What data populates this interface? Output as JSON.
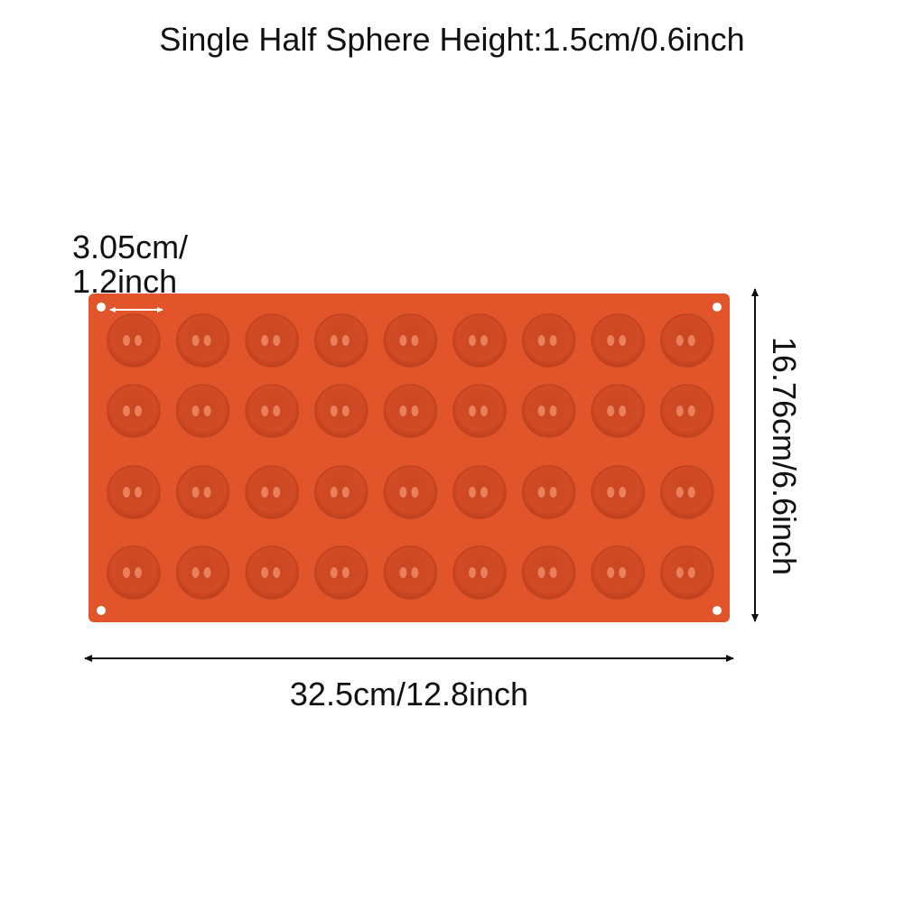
{
  "title": "Single Half Sphere Height:1.5cm/0.6inch",
  "dimensions": {
    "cavity_diameter_line1": "3.05cm/",
    "cavity_diameter_line2": "1.2inch",
    "tray_width": "32.5cm/12.8inch",
    "tray_height": "16.76cm/6.6inch"
  },
  "mold": {
    "rows": 4,
    "columns": 9,
    "color": "#e25429",
    "cavity_color": "#cf4a24",
    "highlight_color": "#f08a66"
  }
}
